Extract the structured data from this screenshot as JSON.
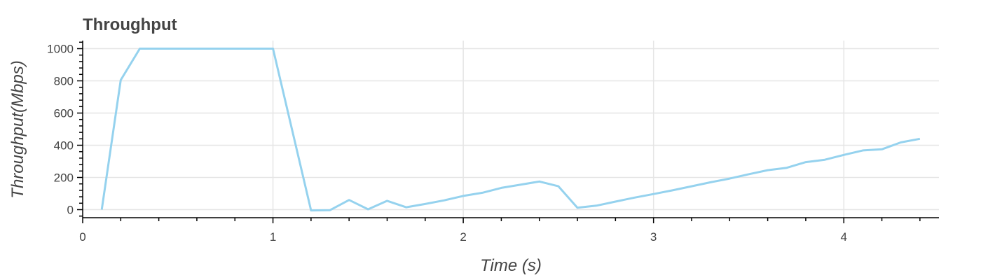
{
  "chart_data": {
    "type": "line",
    "title": "Throughput",
    "xlabel": "Time (s)",
    "ylabel": "Throughput(Mbps)",
    "xlim": [
      0,
      4.5
    ],
    "ylim": [
      -50,
      1050
    ],
    "x_ticks": [
      0,
      1,
      2,
      3,
      4
    ],
    "x_tick_labels": [
      "0",
      "1",
      "2",
      "3",
      "4"
    ],
    "y_ticks": [
      0,
      200,
      400,
      600,
      800,
      1000
    ],
    "y_tick_labels": [
      "0",
      "200",
      "400",
      "600",
      "800",
      "1000"
    ],
    "grid": true,
    "legend": "none",
    "line_color": "#95d2ee",
    "series": [
      {
        "x": [
          0.1,
          0.2,
          0.3,
          0.4,
          0.5,
          0.6,
          0.7,
          0.8,
          0.9,
          1.0,
          1.2,
          1.3,
          1.4,
          1.5,
          1.6,
          1.7,
          1.8,
          1.9,
          2.0,
          2.1,
          2.2,
          2.3,
          2.4,
          2.5,
          2.6,
          2.7,
          2.8,
          2.9,
          3.0,
          3.1,
          3.2,
          3.3,
          3.4,
          3.5,
          3.6,
          3.7,
          3.8,
          3.9,
          4.0,
          4.1,
          4.2,
          4.3,
          4.4
        ],
        "y": [
          0,
          805,
          1000,
          1000,
          1000,
          1000,
          1000,
          1000,
          1000,
          1000,
          -5,
          -3,
          60,
          2,
          55,
          15,
          35,
          58,
          85,
          105,
          135,
          155,
          175,
          145,
          12,
          25,
          50,
          75,
          97,
          120,
          145,
          170,
          193,
          220,
          245,
          260,
          295,
          310,
          340,
          368,
          375,
          418,
          440
        ]
      }
    ]
  }
}
